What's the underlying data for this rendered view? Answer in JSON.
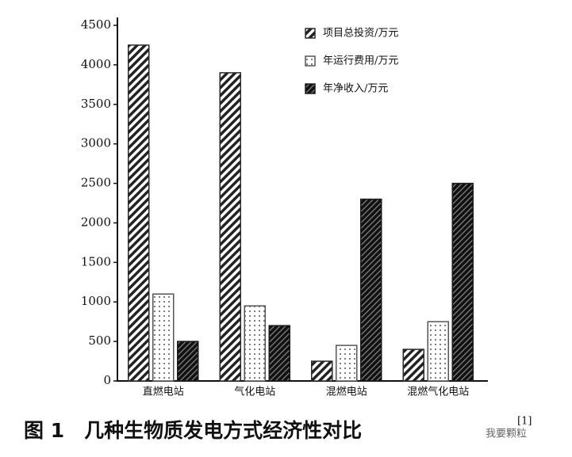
{
  "chart_data": {
    "type": "bar",
    "categories": [
      "直燃电站",
      "气化电站",
      "混燃电站",
      "混燃气化电站"
    ],
    "series": [
      {
        "name": "项目总投资/万元",
        "color": "#2a2a2a",
        "values": [
          4250,
          3900,
          250,
          400
        ]
      },
      {
        "name": "年运行费用/万元",
        "color": "#555555",
        "values": [
          1100,
          950,
          450,
          750
        ]
      },
      {
        "name": "年净收入/万元",
        "color": "#1a1a1a",
        "values": [
          500,
          700,
          2300,
          2500
        ]
      }
    ],
    "ylim": [
      0,
      4500
    ],
    "yticks": [
      0,
      500,
      1000,
      1500,
      2000,
      2500,
      3000,
      3500,
      4000,
      4500
    ],
    "legend": "upper right",
    "caption": "图 1　几种生物质发电方式经济性对比",
    "caption_ref": "[1]",
    "watermark": "我要颗粒"
  }
}
